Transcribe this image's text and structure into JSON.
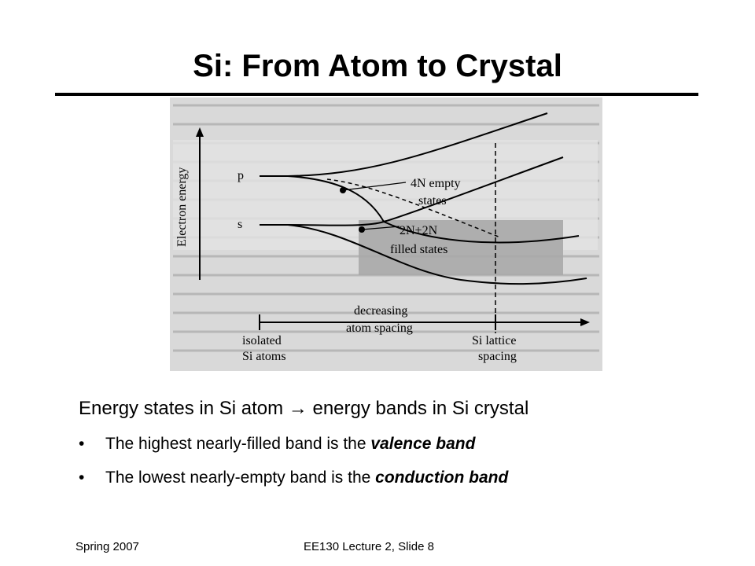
{
  "slide": {
    "title": "Si: From Atom to Crystal",
    "main_text_before": "Energy states in Si atom ",
    "arrow_glyph": "→",
    "main_text_after": " energy bands in Si crystal",
    "bullets": [
      {
        "prefix": "The highest nearly-filled band is the ",
        "emphasis": "valence band"
      },
      {
        "prefix": "The lowest nearly-empty band is the ",
        "emphasis": "conduction band"
      }
    ],
    "bullet_glyph": "•",
    "footer_left": "Spring 2007",
    "footer_center": "EE130 Lecture 2, Slide 8"
  },
  "figure": {
    "y_axis_label": "Electron energy",
    "level_p": "p",
    "level_s": "s",
    "upper_band_label_line1": "4N empty",
    "upper_band_label_line2": "states",
    "lower_band_label_line1": "2N+2N",
    "lower_band_label_line2": "filled states",
    "x_arrow_label_line1": "decreasing",
    "x_arrow_label_line2": "atom spacing",
    "left_marker_label_line1": "isolated",
    "left_marker_label_line2": "Si atoms",
    "right_marker_label_line1": "Si lattice",
    "right_marker_label_line2": "spacing",
    "background_color": "#d9d9d9",
    "band_fill_color": "#a8a8a8"
  }
}
